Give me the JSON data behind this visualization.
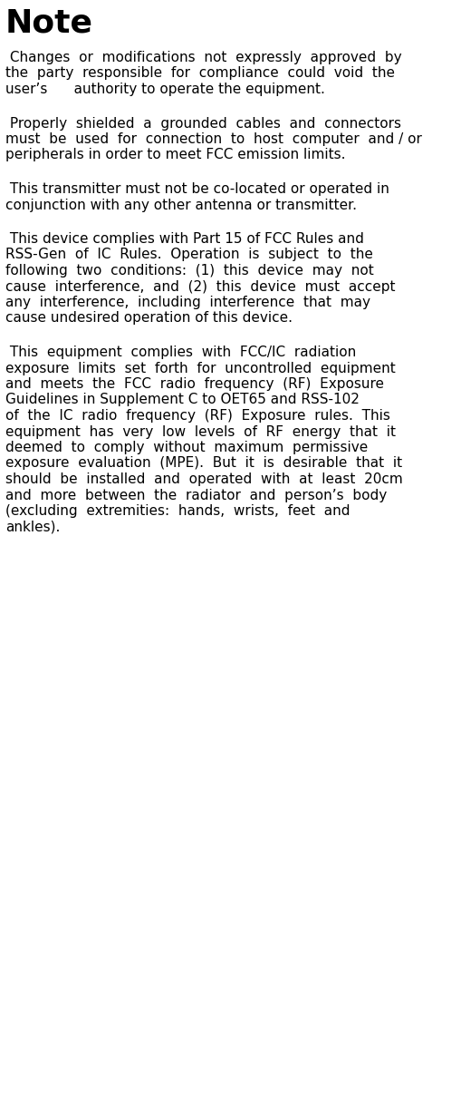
{
  "title": "Note",
  "background_color": "#ffffff",
  "text_color": "#000000",
  "title_fontsize": 26,
  "body_fontsize": 11.0,
  "fig_width": 5.09,
  "fig_height": 12.35,
  "dpi": 100,
  "para_lines": [
    [
      " Changes  or  modifications  not  expressly  approved  by",
      "the  party  responsible  for  compliance  could  void  the",
      "user’s      authority to operate the equipment."
    ],
    [
      " Properly  shielded  a  grounded  cables  and  connectors",
      "must  be  used  for  connection  to  host  computer  and / or",
      "peripherals in order to meet FCC emission limits."
    ],
    [
      " This transmitter must not be co-located or operated in",
      "conjunction with any other antenna or transmitter."
    ],
    [
      " This device complies with Part 15 of FCC Rules and",
      "RSS-Gen  of  IC  Rules.  Operation  is  subject  to  the",
      "following  two  conditions:  (1)  this  device  may  not",
      "cause  interference,  and  (2)  this  device  must  accept",
      "any  interference,  including  interference  that  may",
      "cause undesired operation of this device."
    ],
    [
      " This  equipment  complies  with  FCC/IC  radiation",
      "exposure  limits  set  forth  for  uncontrolled  equipment",
      "and  meets  the  FCC  radio  frequency  (RF)  Exposure",
      "Guidelines in Supplement C to OET65 and RSS-102",
      "of  the  IC  radio  frequency  (RF)  Exposure  rules.  This",
      "equipment  has  very  low  levels  of  RF  energy  that  it",
      "deemed  to  comply  without  maximum  permissive",
      "exposure  evaluation  (MPE).  But  it  is  desirable  that  it",
      "should  be  installed  and  operated  with  at  least  20cm",
      "and  more  between  the  radiator  and  person’s  body",
      "(excluding  extremities:  hands,  wrists,  feet  and",
      "ankles)."
    ]
  ]
}
